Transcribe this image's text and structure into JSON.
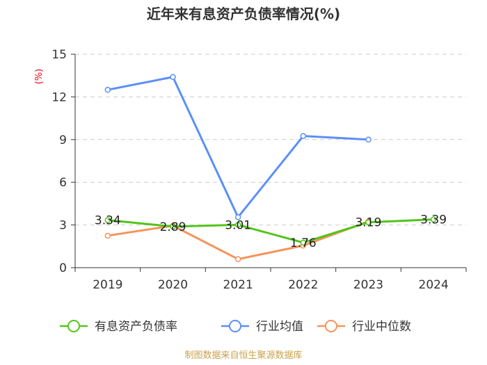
{
  "chart_data": {
    "type": "line",
    "title": "近年来有息资产负债率情况(%)",
    "ylabel": "(%)",
    "categories": [
      "2019",
      "2020",
      "2021",
      "2022",
      "2023",
      "2024"
    ],
    "ylim": [
      0,
      15
    ],
    "yticks": [
      0,
      3,
      6,
      9,
      12,
      15
    ],
    "grid": true,
    "legend_position": "bottom",
    "series": [
      {
        "name": "有息资产负债率",
        "color": "#52c41a",
        "values": [
          3.34,
          2.89,
          3.01,
          1.76,
          3.19,
          3.39
        ],
        "labels": [
          "3.34",
          "2.89",
          "3.01",
          "1.76",
          "3.19",
          "3.39"
        ]
      },
      {
        "name": "行业均值",
        "color": "#5b8ff9",
        "values": [
          12.5,
          13.4,
          3.55,
          9.25,
          9.0,
          null
        ]
      },
      {
        "name": "行业中位数",
        "color": "#f6935a",
        "values": [
          2.25,
          2.95,
          0.6,
          1.55,
          3.25,
          null
        ]
      }
    ],
    "source": "制图数据来自恒生聚源数据库"
  }
}
